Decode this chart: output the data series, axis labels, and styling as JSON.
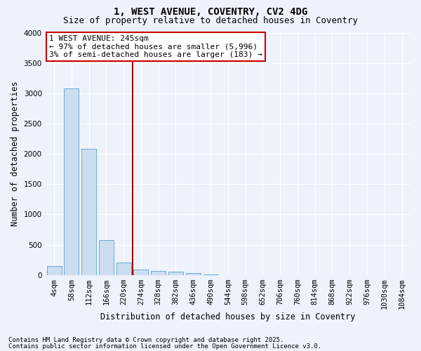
{
  "title": "1, WEST AVENUE, COVENTRY, CV2 4DG",
  "subtitle": "Size of property relative to detached houses in Coventry",
  "xlabel": "Distribution of detached houses by size in Coventry",
  "ylabel": "Number of detached properties",
  "categories": [
    "4sqm",
    "58sqm",
    "112sqm",
    "166sqm",
    "220sqm",
    "274sqm",
    "328sqm",
    "382sqm",
    "436sqm",
    "490sqm",
    "544sqm",
    "598sqm",
    "652sqm",
    "706sqm",
    "760sqm",
    "814sqm",
    "868sqm",
    "922sqm",
    "976sqm",
    "1030sqm",
    "1084sqm"
  ],
  "values": [
    150,
    3080,
    2080,
    580,
    200,
    90,
    70,
    50,
    30,
    5,
    0,
    0,
    0,
    0,
    0,
    0,
    0,
    0,
    0,
    0,
    0
  ],
  "bar_color": "#ccddf0",
  "bar_edge_color": "#6aaad4",
  "vline_x": 4.5,
  "vline_color": "#aa0000",
  "ylim": [
    0,
    4000
  ],
  "yticks": [
    0,
    500,
    1000,
    1500,
    2000,
    2500,
    3000,
    3500,
    4000
  ],
  "annotation_text": "1 WEST AVENUE: 245sqm\n← 97% of detached houses are smaller (5,996)\n3% of semi-detached houses are larger (183) →",
  "annotation_box_facecolor": "#ffffff",
  "annotation_box_edgecolor": "#cc0000",
  "footer_line1": "Contains HM Land Registry data © Crown copyright and database right 2025.",
  "footer_line2": "Contains public sector information licensed under the Open Government Licence v3.0.",
  "background_color": "#edf2fb",
  "grid_color": "#ffffff",
  "title_fontsize": 10,
  "subtitle_fontsize": 9,
  "axis_label_fontsize": 8.5,
  "tick_fontsize": 7.5,
  "annotation_fontsize": 8,
  "footer_fontsize": 6.5
}
